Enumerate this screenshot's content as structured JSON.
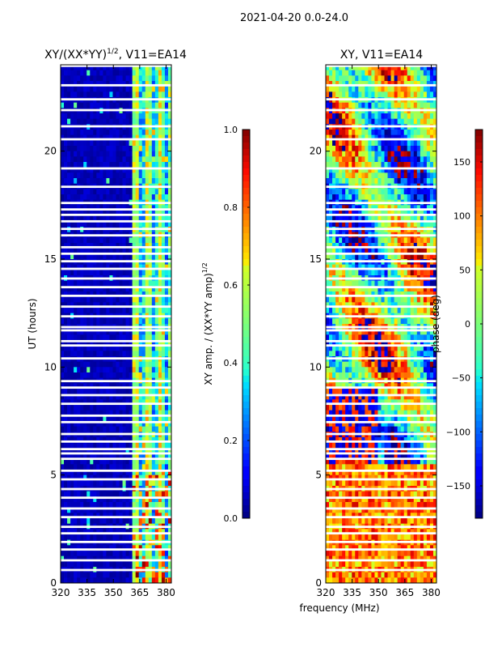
{
  "suptitle": "2021-04-20 0.0-24.0",
  "shared_xlabel": "frequency (MHz)",
  "colors": {
    "jet": [
      "#00007f",
      "#0000ff",
      "#007fff",
      "#00ffff",
      "#7fff7f",
      "#ffff00",
      "#ff7f00",
      "#ff0000",
      "#7f0000"
    ],
    "axis": "#000000",
    "gap": "#ffffff"
  },
  "chart_data": [
    {
      "type": "heatmap",
      "title_main": "XY/(XX*YY)",
      "title_sup": "1/2",
      "title_tail": ", V11=EA14",
      "xlabel": "",
      "ylabel": "UT (hours)",
      "xlim": [
        320,
        383
      ],
      "ylim": [
        0,
        24
      ],
      "xticks": [
        320,
        335,
        350,
        365,
        380
      ],
      "yticks": [
        0,
        5,
        10,
        15,
        20
      ],
      "pattern": "amplitude",
      "rfi_band_mhz": [
        361,
        383
      ],
      "colorbar": {
        "label_main": "XY amp. / (XX*YY amp)",
        "label_sup": "1/2",
        "range": [
          0.0,
          1.0
        ],
        "ticks": [
          "0.0",
          "0.2",
          "0.4",
          "0.6",
          "0.8",
          "1.0"
        ]
      }
    },
    {
      "type": "heatmap",
      "title_main": "XY, V11=EA14",
      "title_sup": "",
      "title_tail": "",
      "xlabel": "frequency (MHz)",
      "ylabel": "",
      "xlim": [
        320,
        383
      ],
      "ylim": [
        0,
        24
      ],
      "xticks": [
        320,
        335,
        350,
        365,
        380
      ],
      "yticks": [
        0,
        5,
        10,
        15,
        20
      ],
      "pattern": "phase",
      "colorbar": {
        "label_main": "phase (deg)",
        "label_sup": "",
        "range": [
          -180,
          180
        ],
        "ticks": [
          "−150",
          "−100",
          "−50",
          "0",
          "50",
          "100",
          "150"
        ]
      }
    }
  ],
  "gaps_ut": [
    23.95,
    23.05,
    22.4,
    21.9,
    21.15,
    20.55,
    19.2,
    18.35,
    17.6,
    17.3,
    17.05,
    16.75,
    16.4,
    16.1,
    15.55,
    15.25,
    14.9,
    14.55,
    14.1,
    13.7,
    13.3,
    12.8,
    12.35,
    11.85,
    11.7,
    11.2,
    11.0,
    10.4,
    9.35,
    9.05,
    8.7,
    8.3,
    7.75,
    7.45,
    6.9,
    6.55,
    6.2,
    6.0,
    5.75,
    5.2,
    4.8,
    4.35,
    3.95,
    3.45,
    3.05,
    2.6,
    2.3,
    1.9,
    1.55,
    1.05,
    0.6
  ]
}
